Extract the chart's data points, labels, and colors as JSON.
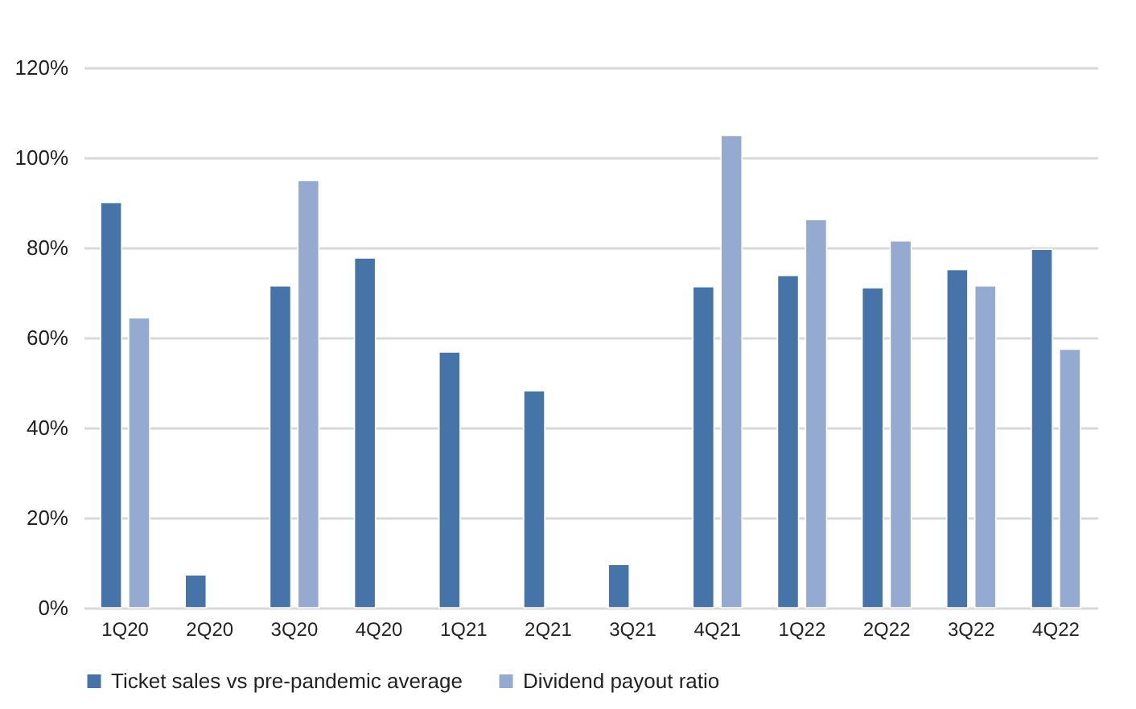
{
  "chart_data": {
    "type": "bar",
    "categories": [
      "1Q20",
      "2Q20",
      "3Q20",
      "4Q20",
      "1Q21",
      "2Q21",
      "3Q21",
      "4Q21",
      "1Q22",
      "2Q22",
      "3Q22",
      "4Q22"
    ],
    "series": [
      {
        "name": "Ticket sales vs pre-pandemic average",
        "color": "#4674a8",
        "values": [
          90,
          7.3,
          71.5,
          77.7,
          56.8,
          48.2,
          9.6,
          71.3,
          73.8,
          71.1,
          75.1,
          79.6
        ]
      },
      {
        "name": "Dividend payout ratio",
        "color": "#95aad1",
        "values": [
          64.4,
          null,
          94.9,
          null,
          null,
          null,
          null,
          104.9,
          86.2,
          81.5,
          71.5,
          57.4
        ]
      }
    ],
    "ylim": [
      0,
      120
    ],
    "yticks": [
      {
        "value": 0,
        "label": "0%"
      },
      {
        "value": 20,
        "label": "20%"
      },
      {
        "value": 40,
        "label": "40%"
      },
      {
        "value": 60,
        "label": "60%"
      },
      {
        "value": 80,
        "label": "80%"
      },
      {
        "value": 100,
        "label": "100%"
      },
      {
        "value": 120,
        "label": "120%"
      }
    ],
    "grid": "y",
    "legend": "bottom"
  }
}
